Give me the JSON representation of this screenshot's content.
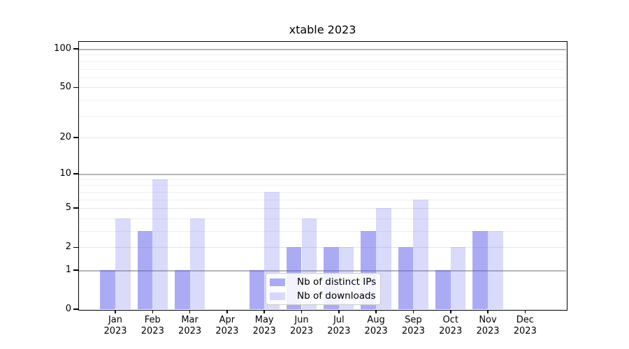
{
  "chart_data": {
    "type": "bar",
    "title": "xtable 2023",
    "categories": [
      "Jan",
      "Feb",
      "Mar",
      "Apr",
      "May",
      "Jun",
      "Jul",
      "Aug",
      "Sep",
      "Oct",
      "Nov",
      "Dec"
    ],
    "year_label": "2023",
    "series": [
      {
        "name": "Nb of distinct IPs",
        "values": [
          1,
          3,
          1,
          0,
          1,
          2,
          2,
          3,
          2,
          1,
          3,
          0
        ],
        "color": "rgba(87,87,235,0.5)"
      },
      {
        "name": "Nb of downloads",
        "values": [
          4,
          9,
          4,
          0,
          7,
          4,
          2,
          5,
          6,
          2,
          3,
          0
        ],
        "color": "rgba(87,87,235,0.22)"
      }
    ],
    "xlabel": "",
    "ylabel": "",
    "yaxis": {
      "scale": "log10(1+x)",
      "ticks": [
        0,
        1,
        2,
        5,
        10,
        20,
        50,
        100
      ],
      "tick_labels": [
        "0",
        "1",
        "2",
        "5",
        "10",
        "20",
        "50",
        "100"
      ],
      "minor_gridlines": [
        3,
        4,
        6,
        7,
        8,
        9,
        30,
        40,
        60,
        70,
        80,
        90
      ],
      "decade_gridlines": [
        1,
        10,
        100
      ],
      "ylim": [
        0,
        113
      ]
    },
    "grid": true,
    "legend_position": "lower center"
  },
  "colors": {
    "bar_dark_on_white": "#ababf5",
    "bar_light_on_white": "#dbdbfa",
    "decade_gridline": "#b5b5b5",
    "major_gridline": "#e5e5e5",
    "minor_gridline": "#efefef",
    "axis": "#000000",
    "legend_border": "#cccccc"
  }
}
